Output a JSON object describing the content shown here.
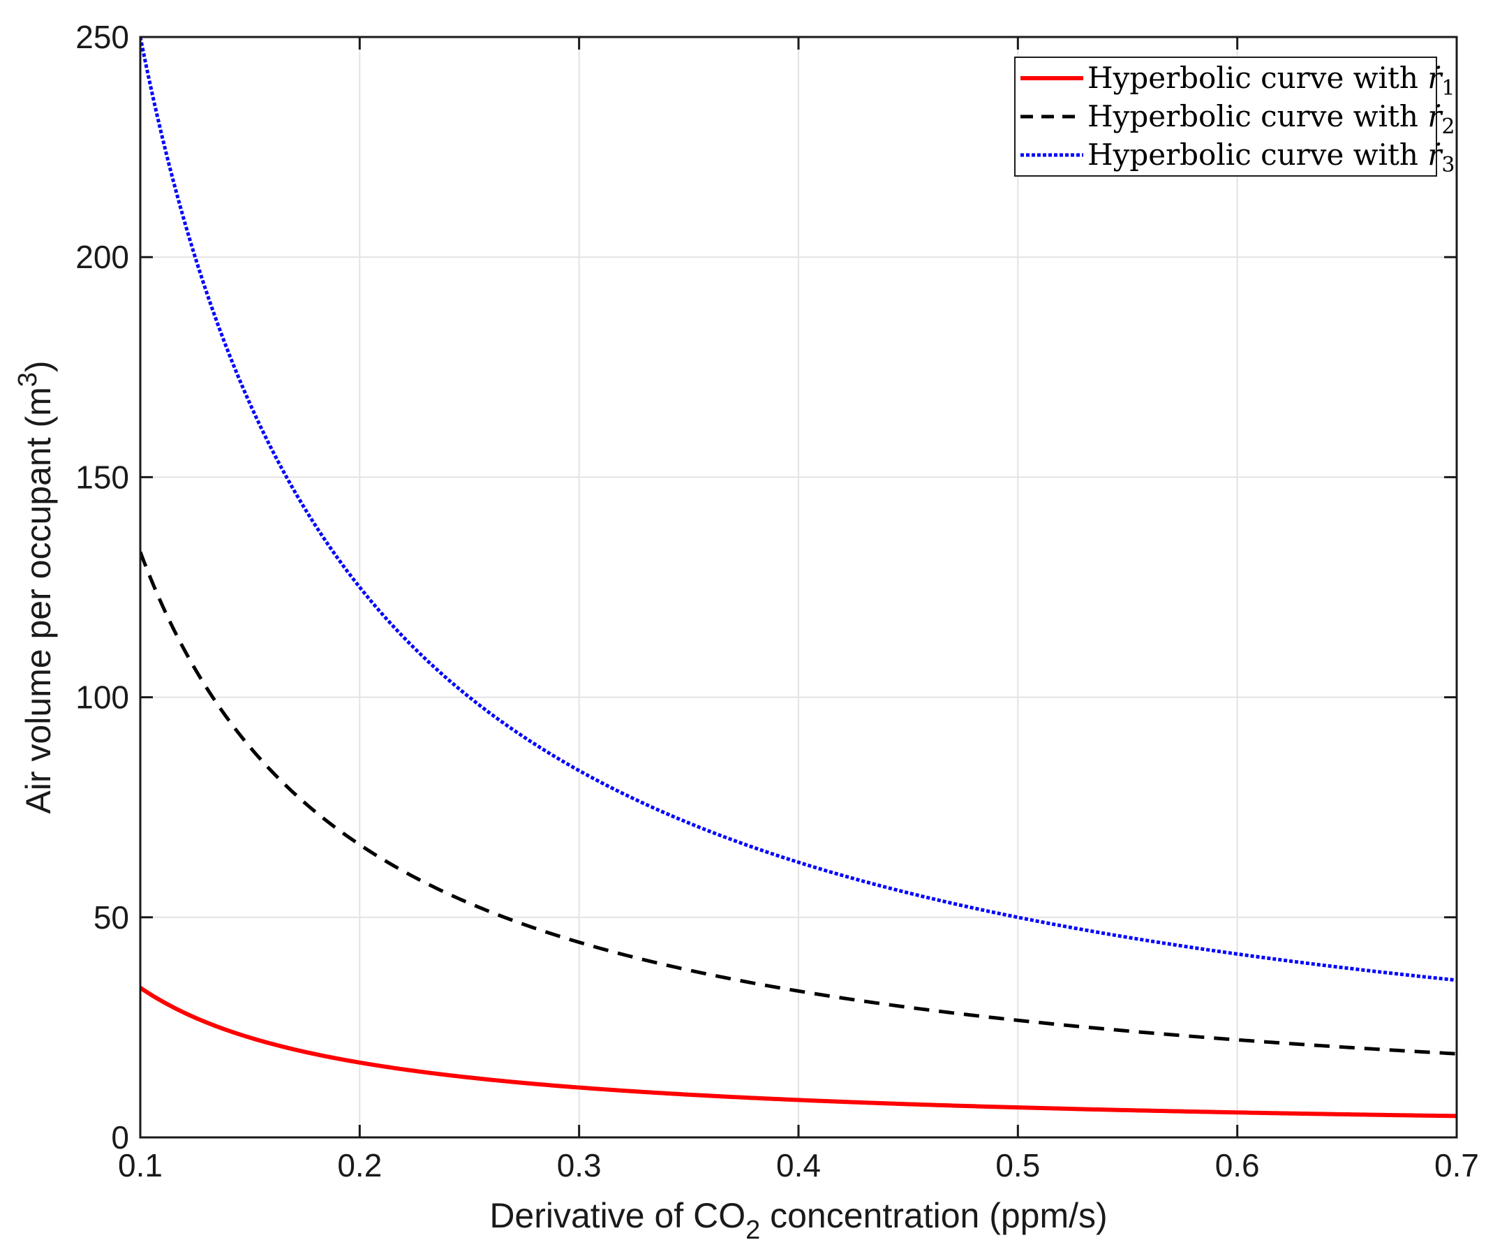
{
  "chart_data": {
    "type": "line",
    "title": "",
    "xlabel": {
      "prefix": "Derivative of CO",
      "subscript": "2",
      "suffix": " concentration (ppm/s)"
    },
    "ylabel": {
      "text": "Air volume per occupant (m",
      "superscript": "3",
      "suffix": ")"
    },
    "xlim": [
      0.1,
      0.7
    ],
    "ylim": [
      0,
      250
    ],
    "xticks": [
      0.1,
      0.2,
      0.3,
      0.4,
      0.5,
      0.6,
      0.7
    ],
    "xtick_labels": [
      "0.1",
      "0.2",
      "0.3",
      "0.4",
      "0.5",
      "0.6",
      "0.7"
    ],
    "yticks": [
      0,
      50,
      100,
      150,
      200,
      250
    ],
    "ytick_labels": [
      "0",
      "50",
      "100",
      "150",
      "200",
      "250"
    ],
    "grid": true,
    "legend_position": "top-right",
    "series": [
      {
        "name": "Hyperbolic curve with ṙ1",
        "legend_prefix": "Hyperbolic curve with ",
        "legend_symbol": "ṙ",
        "legend_subscript": "1",
        "color": "#ff0000",
        "style": "solid",
        "function": "hyperbola",
        "coefficient": 3.4,
        "x": [
          0.1,
          0.2,
          0.3,
          0.4,
          0.5,
          0.6,
          0.7
        ],
        "values": [
          34.0,
          17.0,
          11.3,
          8.5,
          6.8,
          5.7,
          4.9
        ]
      },
      {
        "name": "Hyperbolic curve with ṙ2",
        "legend_prefix": "Hyperbolic curve with ",
        "legend_symbol": "ṙ",
        "legend_subscript": "2",
        "color": "#000000",
        "style": "dashed",
        "function": "hyperbola",
        "coefficient": 13.3,
        "x": [
          0.1,
          0.2,
          0.3,
          0.4,
          0.5,
          0.6,
          0.7
        ],
        "values": [
          133.0,
          66.5,
          44.3,
          33.3,
          26.6,
          22.2,
          19.0
        ]
      },
      {
        "name": "Hyperbolic curve with ṙ3",
        "legend_prefix": "Hyperbolic curve with ",
        "legend_symbol": "ṙ",
        "legend_subscript": "3",
        "color": "#0000ff",
        "style": "dotted",
        "function": "hyperbola",
        "coefficient": 25.0,
        "x": [
          0.1,
          0.2,
          0.3,
          0.4,
          0.5,
          0.6,
          0.7
        ],
        "values": [
          250.0,
          125.0,
          83.3,
          62.5,
          50.0,
          41.7,
          35.7
        ]
      }
    ]
  }
}
